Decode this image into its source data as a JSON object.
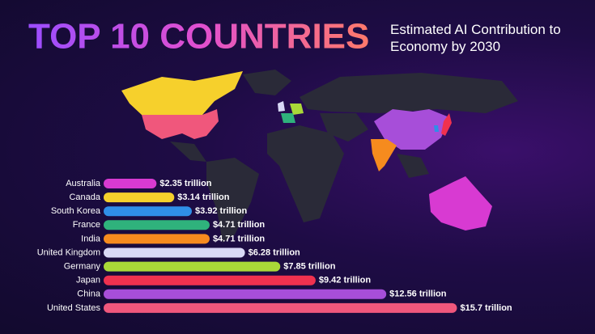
{
  "chart_data": {
    "type": "bar",
    "orientation": "horizontal",
    "title": "TOP 10 COUNTRIES",
    "subtitle": "Estimated AI Contribution to Economy by 2030",
    "categories": [
      "Australia",
      "Canada",
      "South Korea",
      "France",
      "India",
      "United Kingdom",
      "Germany",
      "Japan",
      "China",
      "United States"
    ],
    "values": [
      2.35,
      3.14,
      3.92,
      4.71,
      4.71,
      6.28,
      7.85,
      9.42,
      12.56,
      15.7
    ],
    "value_labels": [
      "$2.35 trillion",
      "$3.14 trillion",
      "$3.92 trillion",
      "$4.71 trillion",
      "$4.71 trillion",
      "$6.28 trillion",
      "$7.85 trillion",
      "$9.42 trillion",
      "$12.56 trillion",
      "$15.7 trillion"
    ],
    "colors": [
      "#d83ad2",
      "#f6d02c",
      "#2f8fe8",
      "#2fb27c",
      "#f68b1e",
      "#d9d9f6",
      "#a9d838",
      "#f0314f",
      "#a74ed9",
      "#f0577c"
    ]
  }
}
